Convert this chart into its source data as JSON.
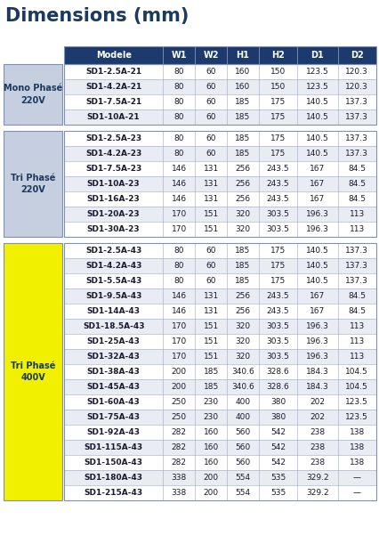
{
  "title": "Dimensions (mm)",
  "title_color": "#1c3a5e",
  "header_bg": "#1c3a6e",
  "header_fg": "#ffffff",
  "group_bg": "#c5cfe0",
  "group_fg": "#1c3a5e",
  "row_bg1": "#ffffff",
  "row_bg2": "#eaecf4",
  "col_sep_color": "#9aa8c0",
  "border_color": "#8090b0",
  "col_headers": [
    "Modele",
    "W1",
    "W2",
    "H1",
    "H2",
    "D1",
    "D2"
  ],
  "groups": [
    {
      "label": "Mono Phasé\n220V",
      "label_bg": "#c5cfe0",
      "label_fg": "#1c3a5e",
      "yellow": false,
      "rows": [
        [
          "SD1-2.5A-21",
          "80",
          "60",
          "160",
          "150",
          "123.5",
          "120.3"
        ],
        [
          "SD1-4.2A-21",
          "80",
          "60",
          "160",
          "150",
          "123.5",
          "120.3"
        ],
        [
          "SD1-7.5A-21",
          "80",
          "60",
          "185",
          "175",
          "140.5",
          "137.3"
        ],
        [
          "SD1-10A-21",
          "80",
          "60",
          "185",
          "175",
          "140.5",
          "137.3"
        ]
      ]
    },
    {
      "label": "Tri Phasé\n220V",
      "label_bg": "#c5cfe0",
      "label_fg": "#1c3a5e",
      "yellow": false,
      "rows": [
        [
          "SD1-2.5A-23",
          "80",
          "60",
          "185",
          "175",
          "140.5",
          "137.3"
        ],
        [
          "SD1-4.2A-23",
          "80",
          "60",
          "185",
          "175",
          "140.5",
          "137.3"
        ],
        [
          "SD1-7.5A-23",
          "146",
          "131",
          "256",
          "243.5",
          "167",
          "84.5"
        ],
        [
          "SD1-10A-23",
          "146",
          "131",
          "256",
          "243.5",
          "167",
          "84.5"
        ],
        [
          "SD1-16A-23",
          "146",
          "131",
          "256",
          "243.5",
          "167",
          "84.5"
        ],
        [
          "SD1-20A-23",
          "170",
          "151",
          "320",
          "303.5",
          "196.3",
          "113"
        ],
        [
          "SD1-30A-23",
          "170",
          "151",
          "320",
          "303.5",
          "196.3",
          "113"
        ]
      ]
    },
    {
      "label": "Tri Phasé\n400V",
      "label_bg": "#f0f000",
      "label_fg": "#1c3a5e",
      "yellow": true,
      "rows": [
        [
          "SD1-2.5A-43",
          "80",
          "60",
          "185",
          "175",
          "140.5",
          "137.3"
        ],
        [
          "SD1-4.2A-43",
          "80",
          "60",
          "185",
          "175",
          "140.5",
          "137.3"
        ],
        [
          "SD1-5.5A-43",
          "80",
          "60",
          "185",
          "175",
          "140.5",
          "137.3"
        ],
        [
          "SD1-9.5A-43",
          "146",
          "131",
          "256",
          "243.5",
          "167",
          "84.5"
        ],
        [
          "SD1-14A-43",
          "146",
          "131",
          "256",
          "243.5",
          "167",
          "84.5"
        ],
        [
          "SD1-18.5A-43",
          "170",
          "151",
          "320",
          "303.5",
          "196.3",
          "113"
        ],
        [
          "SD1-25A-43",
          "170",
          "151",
          "320",
          "303.5",
          "196.3",
          "113"
        ],
        [
          "SD1-32A-43",
          "170",
          "151",
          "320",
          "303.5",
          "196.3",
          "113"
        ],
        [
          "SD1-38A-43",
          "200",
          "185",
          "340.6",
          "328.6",
          "184.3",
          "104.5"
        ],
        [
          "SD1-45A-43",
          "200",
          "185",
          "340.6",
          "328.6",
          "184.3",
          "104.5"
        ],
        [
          "SD1-60A-43",
          "250",
          "230",
          "400",
          "380",
          "202",
          "123.5"
        ],
        [
          "SD1-75A-43",
          "250",
          "230",
          "400",
          "380",
          "202",
          "123.5"
        ],
        [
          "SD1-92A-43",
          "282",
          "160",
          "560",
          "542",
          "238",
          "138"
        ],
        [
          "SD1-115A-43",
          "282",
          "160",
          "560",
          "542",
          "238",
          "138"
        ],
        [
          "SD1-150A-43",
          "282",
          "160",
          "560",
          "542",
          "238",
          "138"
        ],
        [
          "SD1-180A-43",
          "338",
          "200",
          "554",
          "535",
          "329.2",
          "—"
        ],
        [
          "SD1-215A-43",
          "338",
          "200",
          "554",
          "535",
          "329.2",
          "—"
        ]
      ]
    }
  ],
  "fig_w": 4.27,
  "fig_h": 6.2,
  "dpi": 100
}
